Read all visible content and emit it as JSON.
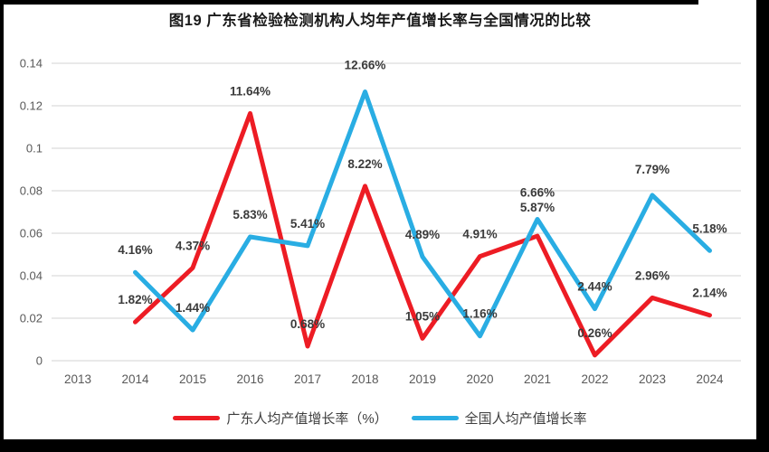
{
  "chart_data": {
    "type": "line",
    "title": "图19  广东省检验检测机构人均年产值增长率与全国情况的比较",
    "categories": [
      "2013",
      "2014",
      "2015",
      "2016",
      "2017",
      "2018",
      "2019",
      "2020",
      "2021",
      "2022",
      "2023",
      "2024"
    ],
    "y_ticks": [
      "0",
      "0.02",
      "0.04",
      "0.06",
      "0.08",
      "0.1",
      "0.12",
      "0.14"
    ],
    "ylim": [
      0,
      0.14
    ],
    "grid": "horizontal",
    "legend_position": "bottom",
    "colors": {
      "grid": "#DCDCDC",
      "axis_text": "#595959",
      "label_text": "#3B3B3B",
      "frame": "#000000",
      "background": "#FFFFFF"
    },
    "series": [
      {
        "name": "广东人均产值增长率（%）",
        "color": "#ED1C24",
        "values": [
          null,
          0.0182,
          0.0437,
          0.1164,
          0.0068,
          0.0822,
          0.0105,
          0.0491,
          0.0587,
          0.0026,
          0.0296,
          0.0214
        ],
        "point_labels": [
          null,
          "1.82%",
          "4.37%",
          "11.64%",
          "0.68%",
          "8.22%",
          "1.05%",
          "4.91%",
          "5.87%",
          "0.26%",
          "2.96%",
          "2.14%"
        ]
      },
      {
        "name": "全国人均产值增长率",
        "color": "#29ADE3",
        "values": [
          null,
          0.0416,
          0.0144,
          0.0583,
          0.0541,
          0.1266,
          0.0489,
          0.0116,
          0.0666,
          0.0244,
          0.0779,
          0.0518
        ],
        "point_labels": [
          null,
          "4.16%",
          "1.44%",
          "5.83%",
          "5.41%",
          "12.66%",
          "4.89%",
          "1.16%",
          "6.66%",
          "2.44%",
          "7.79%",
          "5.18%"
        ]
      }
    ]
  }
}
